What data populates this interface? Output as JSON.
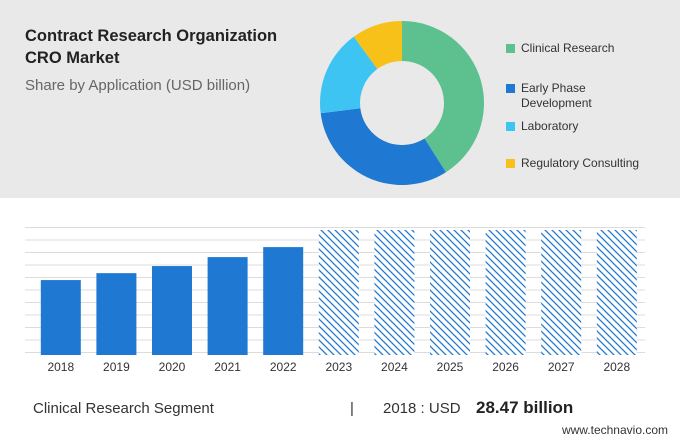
{
  "chart_data": [
    {
      "type": "pie",
      "title": "Contract Research Organization CRO Market",
      "subtitle": "Share by Application (USD billion)",
      "donut": true,
      "categories": [
        "Clinical Research",
        "Early Phase Development",
        "Laboratory",
        "Regulatory Consulting"
      ],
      "values": [
        41,
        32,
        17,
        10
      ],
      "colors": [
        "#5cc08f",
        "#1f78d1",
        "#3ec4f2",
        "#f7c11a"
      ]
    },
    {
      "type": "bar",
      "categories": [
        "2018",
        "2019",
        "2020",
        "2021",
        "2022",
        "2023",
        "2024",
        "2025",
        "2026",
        "2027",
        "2028"
      ],
      "values": [
        28.47,
        31.1,
        33.8,
        37.2,
        41.0,
        null,
        null,
        null,
        null,
        null,
        null
      ],
      "color": "#1f78d1",
      "ylim": [
        0,
        47.5
      ]
    }
  ],
  "footer": {
    "segment": "Clinical Research Segment",
    "separator": "|",
    "year_label": "2018 : USD",
    "value": "28.47 billion"
  },
  "source": "www.technavio.com"
}
